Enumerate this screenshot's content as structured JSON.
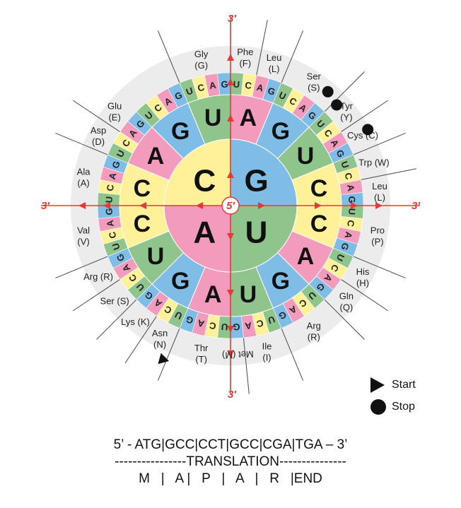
{
  "colors": {
    "G": "#7fbde6",
    "U": "#8fc48c",
    "C": "#fff19a",
    "A": "#f29bbd",
    "ring": "#ececec",
    "line": "#4a4a4a",
    "axis": "#e53935"
  },
  "inner_bases": [
    "G",
    "U",
    "A",
    "C"
  ],
  "middle_bases": [
    "A",
    "G",
    "U",
    "C",
    "C",
    "A",
    "G",
    "U",
    "A",
    "G",
    "U",
    "C",
    "C",
    "A",
    "G",
    "U"
  ],
  "prime_labels": {
    "top": "3′",
    "bottom": "3′",
    "left": "3′",
    "right": "3′",
    "center": "5′"
  },
  "amino_acids": [
    {
      "name": "Phe",
      "code": "(F)"
    },
    {
      "name": "Leu",
      "code": "(L)"
    },
    {
      "name": "Ser",
      "code": "(S)"
    },
    {
      "name": "Tyr",
      "code": "(Y)"
    },
    {
      "name": "Cys (C)",
      "code": ""
    },
    {
      "name": "Trp (W)",
      "code": ""
    },
    {
      "name": "Leu",
      "code": "(L)"
    },
    {
      "name": "Pro",
      "code": "(P)"
    },
    {
      "name": "His",
      "code": "(H)"
    },
    {
      "name": "Gln",
      "code": "(Q)"
    },
    {
      "name": "Arg",
      "code": "(R)"
    },
    {
      "name": "Ile",
      "code": "(I)"
    },
    {
      "name": "Met (M)",
      "code": ""
    },
    {
      "name": "Thr",
      "code": "(T)"
    },
    {
      "name": "Asn",
      "code": "(N)"
    },
    {
      "name": "Lys (K)",
      "code": ""
    },
    {
      "name": "Ser (S)",
      "code": ""
    },
    {
      "name": "Arg (R)",
      "code": ""
    },
    {
      "name": "Val",
      "code": "(V)"
    },
    {
      "name": "Ala",
      "code": "(A)"
    },
    {
      "name": "Asp",
      "code": "(D)"
    },
    {
      "name": "Glu",
      "code": "(E)"
    },
    {
      "name": "Gly",
      "code": "(G)"
    }
  ],
  "legend": {
    "start": "Start",
    "stop": "Stop"
  },
  "translation": {
    "line1": "5’ - ATG|GCC|CCT|GCC|CGA|TGA – 3’",
    "line2": "----------------TRANSLATION---------------",
    "line3": "M   |   A |   P   |   A   |   R   |END"
  }
}
